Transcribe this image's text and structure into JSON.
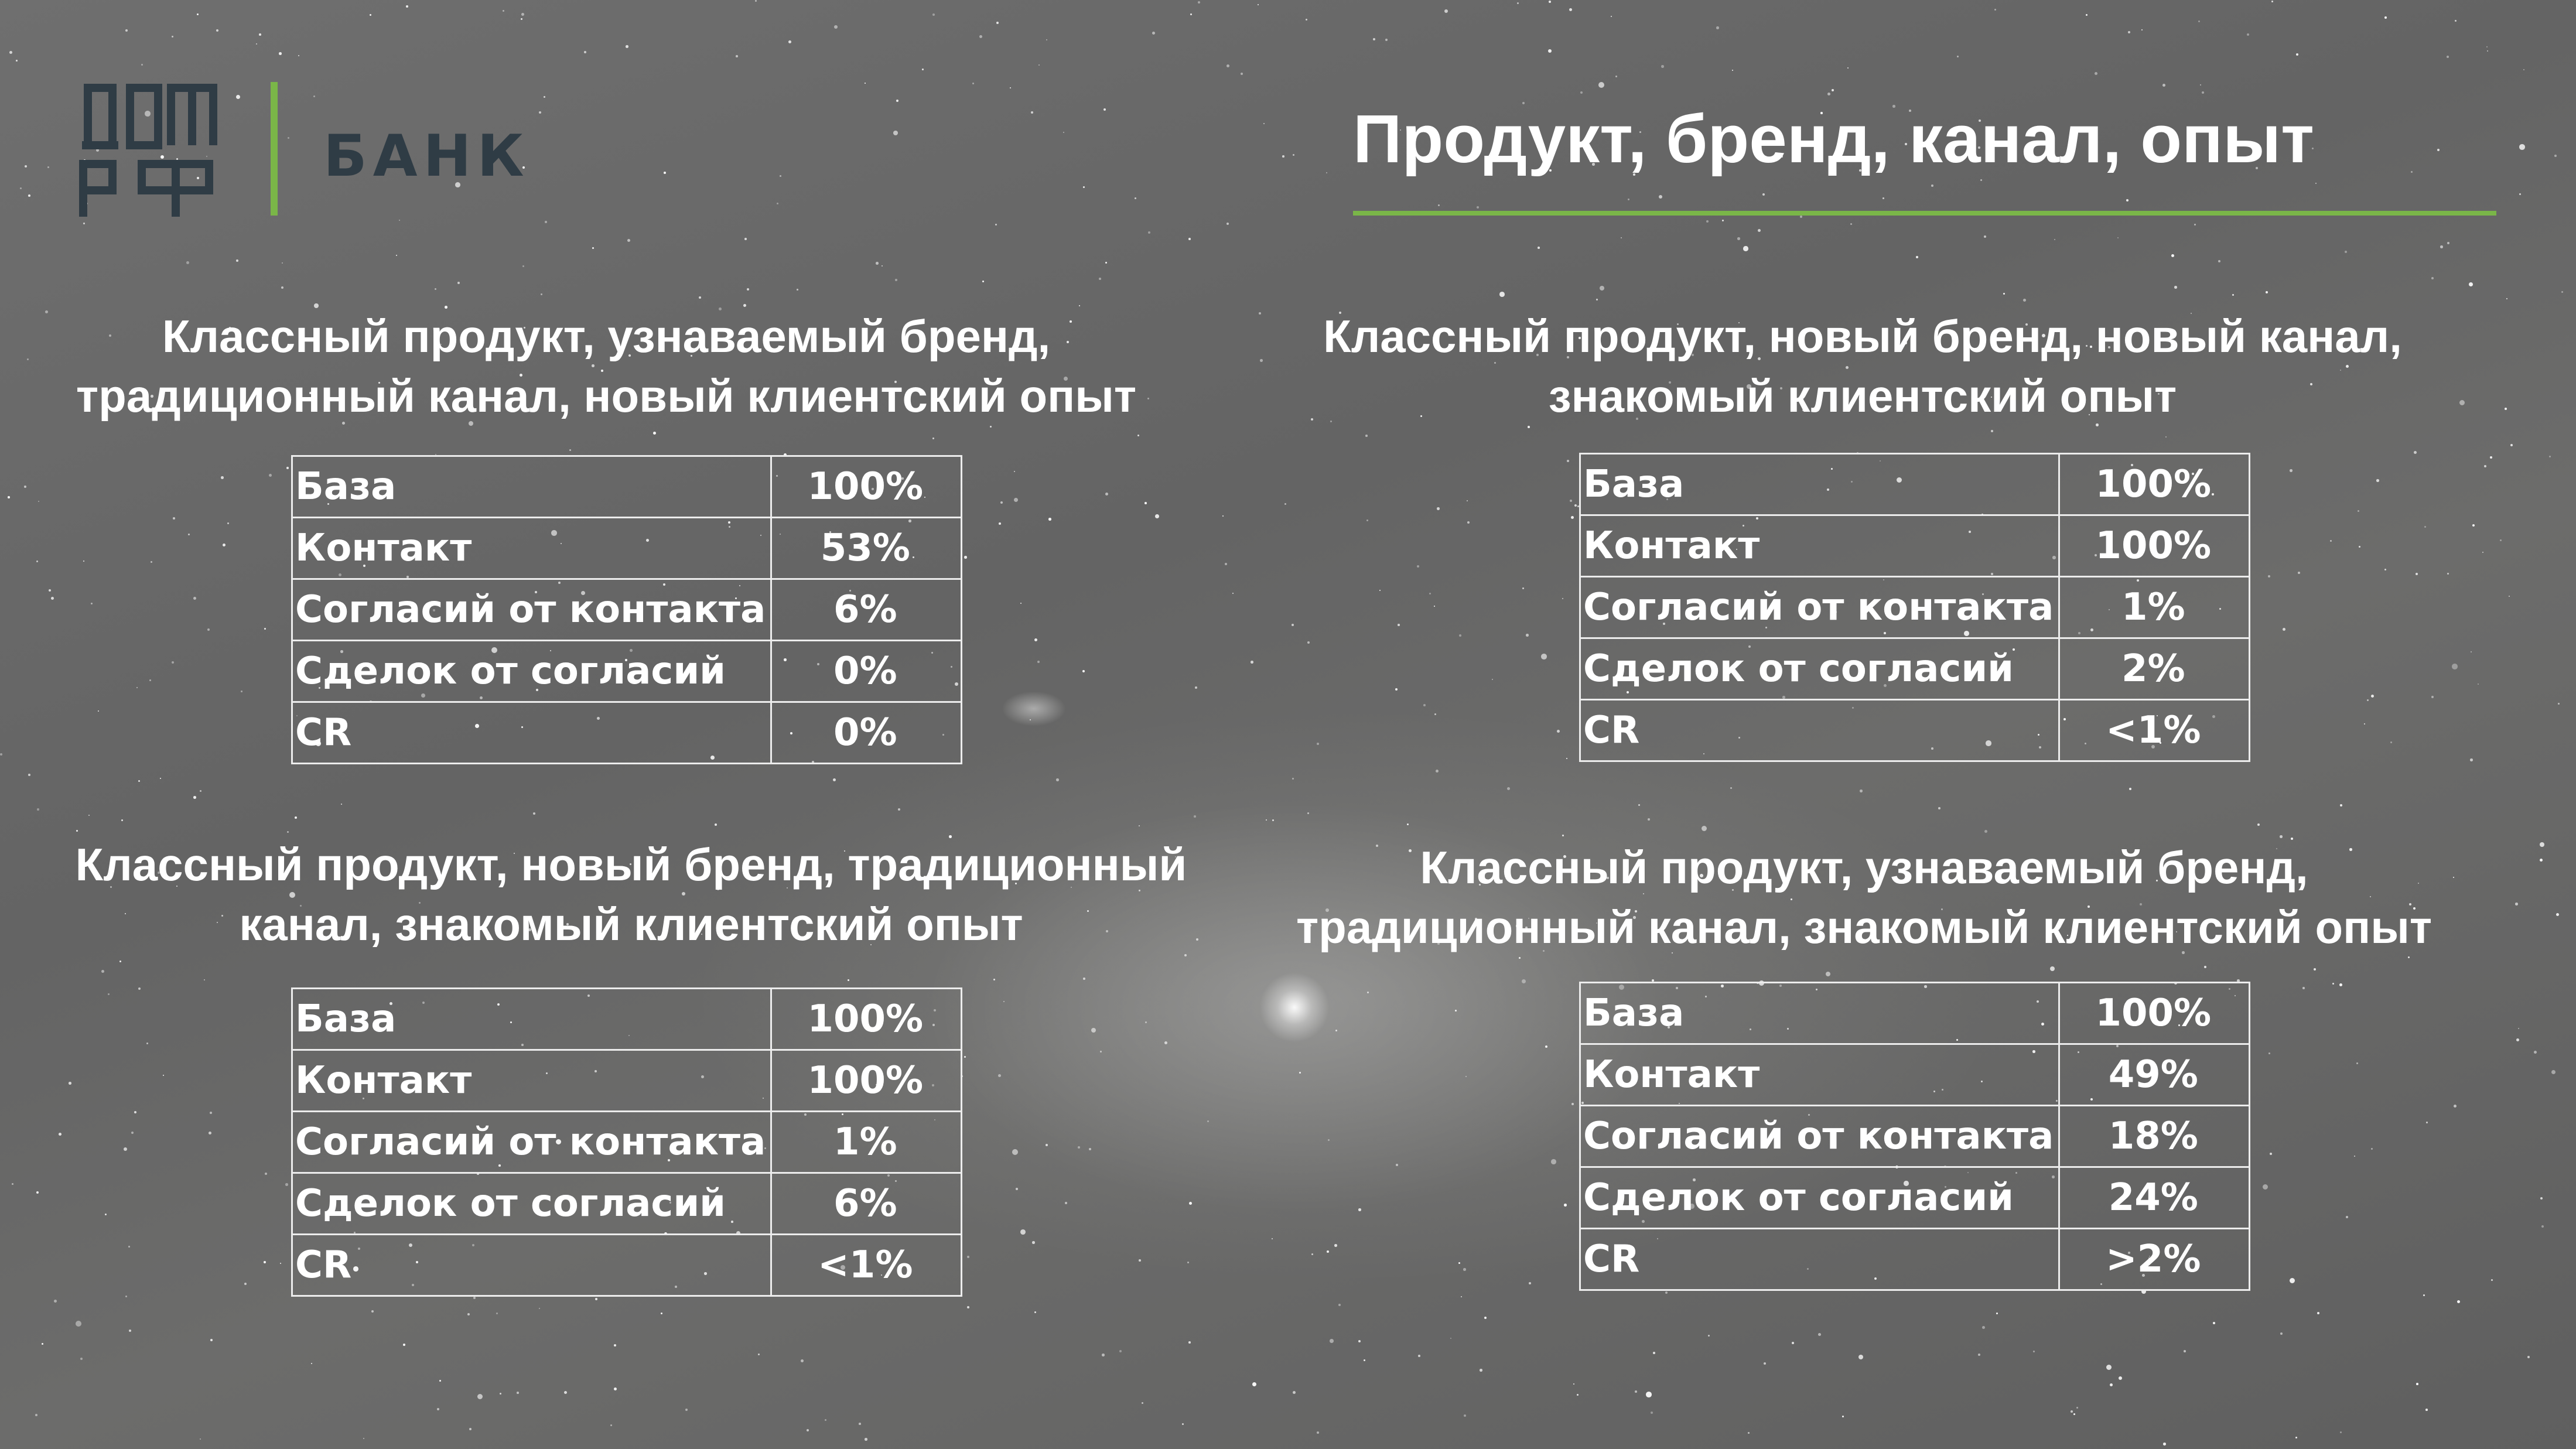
{
  "brand": {
    "logo_mark": "ДОМ РФ",
    "logo_text": "БАНК",
    "accent_color": "#7ab648"
  },
  "page": {
    "title": "Продукт, бренд, канал, опыт"
  },
  "quadrants": [
    {
      "heading_line1": "Классный продукт, узнаваемый бренд,",
      "heading_line2": "традиционный канал, новый клиентский опыт",
      "rows": [
        {
          "label": "База",
          "value": "100%"
        },
        {
          "label": "Контакт",
          "value": "53%"
        },
        {
          "label": "Согласий от контакта",
          "value": "6%"
        },
        {
          "label": "Сделок от согласий",
          "value": "0%"
        },
        {
          "label": "CR",
          "value": "0%"
        }
      ]
    },
    {
      "heading_line1": "Классный продукт, новый бренд, новый канал,",
      "heading_line2": "знакомый клиентский опыт",
      "rows": [
        {
          "label": "База",
          "value": "100%"
        },
        {
          "label": "Контакт",
          "value": "100%"
        },
        {
          "label": "Согласий от контакта",
          "value": "1%"
        },
        {
          "label": "Сделок от согласий",
          "value": "2%"
        },
        {
          "label": "CR",
          "value": "<1%"
        }
      ]
    },
    {
      "heading_line1": "Классный продукт, новый бренд, традиционный",
      "heading_line2": "канал, знакомый клиентский опыт",
      "rows": [
        {
          "label": "База",
          "value": "100%"
        },
        {
          "label": "Контакт",
          "value": "100%"
        },
        {
          "label": "Согласий от контакта",
          "value": "1%"
        },
        {
          "label": "Сделок от согласий",
          "value": "6%"
        },
        {
          "label": "CR",
          "value": "<1%"
        }
      ]
    },
    {
      "heading_line1": "Классный продукт, узнаваемый бренд,",
      "heading_line2": "традиционный канал, знакомый клиентский опыт",
      "rows": [
        {
          "label": "База",
          "value": "100%"
        },
        {
          "label": "Контакт",
          "value": "49%"
        },
        {
          "label": "Согласий от контакта",
          "value": "18%"
        },
        {
          "label": "Сделок от согласий",
          "value": "24%"
        },
        {
          "label": "CR",
          "value": ">2%"
        }
      ]
    }
  ]
}
